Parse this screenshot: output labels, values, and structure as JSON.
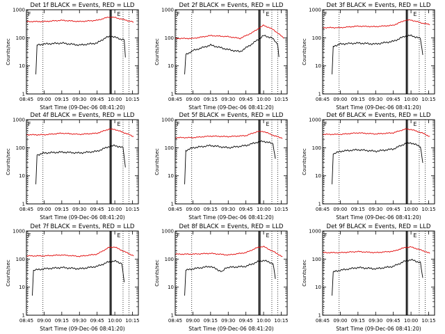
{
  "figure": {
    "x_axis_label": "Start Time (09-Dec-06 08:41:20)",
    "y_axis_label": "Counts/sec"
  },
  "chart_data": [
    {
      "type": "line",
      "title": "Det 1f BLACK = Events, RED = LLD",
      "xlabel": "Start Time (09-Dec-06 08:41:20)",
      "ylabel": "Counts/sec",
      "x_tick_labels": [
        "08:45",
        "09:00",
        "09:15",
        "09:30",
        "09:45",
        "10:00",
        "10:15"
      ],
      "y_tick_labels": [
        "1",
        "10",
        "100",
        "1000"
      ],
      "yscale": "log",
      "ylim": [
        1,
        1000
      ],
      "markers": {
        "f_label": "F",
        "e_label": "E"
      },
      "series": [
        {
          "name": "BLACK = Events",
          "color": "#000000",
          "points": [
            [
              "08:53",
              5
            ],
            [
              "08:54",
              55
            ],
            [
              "09:00",
              60
            ],
            [
              "09:15",
              65
            ],
            [
              "09:30",
              55
            ],
            [
              "09:45",
              65
            ],
            [
              "09:52",
              100
            ],
            [
              "09:57",
              115
            ],
            [
              "10:05",
              90
            ],
            [
              "10:08",
              85
            ],
            [
              "10:09",
              20
            ]
          ]
        },
        {
          "name": "RED = LLD",
          "color": "#e00000",
          "points": [
            [
              "08:45",
              380
            ],
            [
              "09:00",
              380
            ],
            [
              "09:15",
              420
            ],
            [
              "09:30",
              380
            ],
            [
              "09:45",
              420
            ],
            [
              "09:55",
              550
            ],
            [
              "10:00",
              530
            ],
            [
              "10:10",
              420
            ],
            [
              "10:16",
              360
            ]
          ]
        }
      ]
    },
    {
      "type": "line",
      "title": "Det 2f BLACK = Events, RED = LLD",
      "xlabel": "Start Time (09-Dec-06 08:41:20)",
      "ylabel": "Counts/sec",
      "x_tick_labels": [
        "08:45",
        "09:00",
        "09:15",
        "09:30",
        "09:45",
        "10:00",
        "10:15"
      ],
      "y_tick_labels": [
        "1",
        "10",
        "100",
        "1000"
      ],
      "yscale": "log",
      "ylim": [
        1,
        1000
      ],
      "markers": {
        "f_label": "F",
        "e_label": "E"
      },
      "series": [
        {
          "name": "BLACK = Events",
          "color": "#000000",
          "points": [
            [
              "08:53",
              5
            ],
            [
              "08:54",
              25
            ],
            [
              "09:00",
              35
            ],
            [
              "09:15",
              55
            ],
            [
              "09:30",
              38
            ],
            [
              "09:40",
              32
            ],
            [
              "09:50",
              60
            ],
            [
              "10:00",
              120
            ],
            [
              "10:07",
              100
            ],
            [
              "10:12",
              60
            ],
            [
              "10:13",
              20
            ]
          ]
        },
        {
          "name": "RED = LLD",
          "color": "#e00000",
          "points": [
            [
              "08:45",
              95
            ],
            [
              "09:00",
              95
            ],
            [
              "09:15",
              120
            ],
            [
              "09:30",
              110
            ],
            [
              "09:40",
              95
            ],
            [
              "09:50",
              150
            ],
            [
              "10:00",
              280
            ],
            [
              "10:08",
              200
            ],
            [
              "10:17",
              100
            ]
          ]
        }
      ]
    },
    {
      "type": "line",
      "title": "Det 3f BLACK = Events, RED = LLD",
      "xlabel": "Start Time (09-Dec-06 08:41:20)",
      "ylabel": "Counts/sec",
      "x_tick_labels": [
        "08:45",
        "09:00",
        "09:15",
        "09:30",
        "09:45",
        "10:00",
        "10:15"
      ],
      "y_tick_labels": [
        "1",
        "10",
        "100",
        "1000"
      ],
      "yscale": "log",
      "ylim": [
        1,
        1000
      ],
      "markers": {
        "f_label": "F",
        "e_label": "E"
      },
      "series": [
        {
          "name": "BLACK = Events",
          "color": "#000000",
          "points": [
            [
              "08:53",
              5
            ],
            [
              "08:54",
              50
            ],
            [
              "09:00",
              60
            ],
            [
              "09:15",
              65
            ],
            [
              "09:30",
              60
            ],
            [
              "09:45",
              75
            ],
            [
              "09:55",
              115
            ],
            [
              "10:00",
              120
            ],
            [
              "10:08",
              95
            ],
            [
              "10:10",
              25
            ]
          ]
        },
        {
          "name": "RED = LLD",
          "color": "#e00000",
          "points": [
            [
              "08:45",
              230
            ],
            [
              "09:00",
              230
            ],
            [
              "09:15",
              260
            ],
            [
              "09:30",
              250
            ],
            [
              "09:45",
              280
            ],
            [
              "09:55",
              420
            ],
            [
              "10:00",
              430
            ],
            [
              "10:10",
              330
            ],
            [
              "10:16",
              300
            ]
          ]
        }
      ]
    },
    {
      "type": "line",
      "title": "Det 4f BLACK = Events, RED = LLD",
      "xlabel": "Start Time (09-Dec-06 08:41:20)",
      "ylabel": "Counts/sec",
      "x_tick_labels": [
        "08:45",
        "09:00",
        "09:15",
        "09:30",
        "09:45",
        "10:00",
        "10:15"
      ],
      "y_tick_labels": [
        "1",
        "10",
        "100",
        "1000"
      ],
      "yscale": "log",
      "ylim": [
        1,
        1000
      ],
      "markers": {
        "f_label": "F",
        "e_label": "E"
      },
      "series": [
        {
          "name": "BLACK = Events",
          "color": "#000000",
          "points": [
            [
              "08:53",
              5
            ],
            [
              "08:54",
              55
            ],
            [
              "09:00",
              65
            ],
            [
              "09:15",
              70
            ],
            [
              "09:30",
              65
            ],
            [
              "09:45",
              75
            ],
            [
              "09:55",
              110
            ],
            [
              "10:00",
              120
            ],
            [
              "10:07",
              100
            ],
            [
              "10:09",
              20
            ]
          ]
        },
        {
          "name": "RED = LLD",
          "color": "#e00000",
          "points": [
            [
              "08:45",
              290
            ],
            [
              "09:00",
              290
            ],
            [
              "09:15",
              330
            ],
            [
              "09:30",
              300
            ],
            [
              "09:45",
              330
            ],
            [
              "09:55",
              460
            ],
            [
              "10:00",
              450
            ],
            [
              "10:10",
              320
            ],
            [
              "10:16",
              250
            ]
          ]
        }
      ]
    },
    {
      "type": "line",
      "title": "Det 5f BLACK = Events, RED = LLD",
      "xlabel": "Start Time (09-Dec-06 08:41:20)",
      "ylabel": "Counts/sec",
      "x_tick_labels": [
        "08:45",
        "09:00",
        "09:15",
        "09:30",
        "09:45",
        "10:00",
        "10:15"
      ],
      "y_tick_labels": [
        "1",
        "10",
        "100",
        "1000"
      ],
      "yscale": "log",
      "ylim": [
        1,
        1000
      ],
      "markers": {
        "f_label": "F",
        "e_label": "E"
      },
      "series": [
        {
          "name": "BLACK = Events",
          "color": "#000000",
          "points": [
            [
              "08:53",
              5
            ],
            [
              "08:54",
              80
            ],
            [
              "09:00",
              100
            ],
            [
              "09:15",
              120
            ],
            [
              "09:30",
              100
            ],
            [
              "09:45",
              120
            ],
            [
              "09:55",
              160
            ],
            [
              "10:00",
              170
            ],
            [
              "10:08",
              140
            ],
            [
              "10:10",
              40
            ]
          ]
        },
        {
          "name": "RED = LLD",
          "color": "#e00000",
          "points": [
            [
              "08:45",
              230
            ],
            [
              "09:00",
              230
            ],
            [
              "09:15",
              260
            ],
            [
              "09:30",
              250
            ],
            [
              "09:45",
              270
            ],
            [
              "09:55",
              380
            ],
            [
              "10:00",
              380
            ],
            [
              "10:10",
              260
            ],
            [
              "10:16",
              220
            ]
          ]
        }
      ]
    },
    {
      "type": "line",
      "title": "Det 6f BLACK = Events, RED = LLD",
      "xlabel": "Start Time (09-Dec-06 08:41:20)",
      "ylabel": "Counts/sec",
      "x_tick_labels": [
        "08:45",
        "09:00",
        "09:15",
        "09:30",
        "09:45",
        "10:00",
        "10:15"
      ],
      "y_tick_labels": [
        "1",
        "10",
        "100",
        "1000"
      ],
      "yscale": "log",
      "ylim": [
        1,
        1000
      ],
      "markers": {
        "f_label": "F",
        "e_label": "E"
      },
      "series": [
        {
          "name": "BLACK = Events",
          "color": "#000000",
          "points": [
            [
              "08:53",
              5
            ],
            [
              "08:54",
              60
            ],
            [
              "09:00",
              75
            ],
            [
              "09:15",
              85
            ],
            [
              "09:30",
              75
            ],
            [
              "09:45",
              90
            ],
            [
              "09:55",
              140
            ],
            [
              "10:00",
              150
            ],
            [
              "10:08",
              110
            ],
            [
              "10:10",
              30
            ]
          ]
        },
        {
          "name": "RED = LLD",
          "color": "#e00000",
          "points": [
            [
              "08:45",
              300
            ],
            [
              "09:00",
              300
            ],
            [
              "09:15",
              340
            ],
            [
              "09:30",
              310
            ],
            [
              "09:45",
              340
            ],
            [
              "09:55",
              460
            ],
            [
              "10:00",
              450
            ],
            [
              "10:10",
              330
            ],
            [
              "10:16",
              250
            ]
          ]
        }
      ]
    },
    {
      "type": "line",
      "title": "Det 7f BLACK = Events, RED = LLD",
      "xlabel": "Start Time (09-Dec-06 08:41:20)",
      "ylabel": "Counts/sec",
      "x_tick_labels": [
        "08:45",
        "09:00",
        "09:15",
        "09:30",
        "09:45",
        "10:00",
        "10:15"
      ],
      "y_tick_labels": [
        "1",
        "10",
        "100",
        "1000"
      ],
      "yscale": "log",
      "ylim": [
        1,
        1000
      ],
      "markers": {
        "f_label": "F",
        "e_label": "E"
      },
      "series": [
        {
          "name": "BLACK = Events",
          "color": "#000000",
          "points": [
            [
              "08:50",
              5
            ],
            [
              "08:51",
              40
            ],
            [
              "09:00",
              45
            ],
            [
              "09:15",
              50
            ],
            [
              "09:30",
              45
            ],
            [
              "09:45",
              55
            ],
            [
              "09:55",
              80
            ],
            [
              "10:00",
              85
            ],
            [
              "10:06",
              70
            ],
            [
              "10:08",
              15
            ]
          ]
        },
        {
          "name": "RED = LLD",
          "color": "#e00000",
          "points": [
            [
              "08:45",
              130
            ],
            [
              "09:00",
              130
            ],
            [
              "09:15",
              140
            ],
            [
              "09:30",
              125
            ],
            [
              "09:45",
              150
            ],
            [
              "09:55",
              260
            ],
            [
              "10:00",
              270
            ],
            [
              "10:10",
              170
            ],
            [
              "10:16",
              130
            ]
          ]
        }
      ]
    },
    {
      "type": "line",
      "title": "Det 8f BLACK = Events, RED = LLD",
      "xlabel": "Start Time (09-Dec-06 08:41:20)",
      "ylabel": "Counts/sec",
      "x_tick_labels": [
        "08:45",
        "09:00",
        "09:15",
        "09:30",
        "09:45",
        "10:00",
        "10:15"
      ],
      "y_tick_labels": [
        "1",
        "10",
        "100",
        "1000"
      ],
      "yscale": "log",
      "ylim": [
        1,
        1000
      ],
      "markers": {
        "f_label": "F",
        "e_label": "E"
      },
      "series": [
        {
          "name": "BLACK = Events",
          "color": "#000000",
          "points": [
            [
              "08:53",
              5
            ],
            [
              "08:54",
              40
            ],
            [
              "09:00",
              45
            ],
            [
              "09:15",
              55
            ],
            [
              "09:25",
              35
            ],
            [
              "09:28",
              50
            ],
            [
              "09:45",
              55
            ],
            [
              "09:55",
              80
            ],
            [
              "10:00",
              90
            ],
            [
              "10:08",
              70
            ],
            [
              "10:10",
              20
            ]
          ]
        },
        {
          "name": "RED = LLD",
          "color": "#e00000",
          "points": [
            [
              "08:45",
              150
            ],
            [
              "09:00",
              150
            ],
            [
              "09:15",
              160
            ],
            [
              "09:30",
              140
            ],
            [
              "09:45",
              170
            ],
            [
              "09:55",
              260
            ],
            [
              "10:00",
              280
            ],
            [
              "10:10",
              170
            ],
            [
              "10:16",
              120
            ]
          ]
        }
      ]
    },
    {
      "type": "line",
      "title": "Det 9f BLACK = Events, RED = LLD",
      "xlabel": "Start Time (09-Dec-06 08:41:20)",
      "ylabel": "Counts/sec",
      "x_tick_labels": [
        "08:45",
        "09:00",
        "09:15",
        "09:30",
        "09:45",
        "10:00",
        "10:15"
      ],
      "y_tick_labels": [
        "1",
        "10",
        "100",
        "1000"
      ],
      "yscale": "log",
      "ylim": [
        1,
        1000
      ],
      "markers": {
        "f_label": "F",
        "e_label": "E"
      },
      "series": [
        {
          "name": "BLACK = Events",
          "color": "#000000",
          "points": [
            [
              "08:53",
              5
            ],
            [
              "08:54",
              35
            ],
            [
              "09:00",
              40
            ],
            [
              "09:15",
              50
            ],
            [
              "09:30",
              45
            ],
            [
              "09:45",
              55
            ],
            [
              "09:55",
              85
            ],
            [
              "10:00",
              95
            ],
            [
              "10:08",
              75
            ],
            [
              "10:10",
              20
            ]
          ]
        },
        {
          "name": "RED = LLD",
          "color": "#e00000",
          "points": [
            [
              "08:45",
              170
            ],
            [
              "09:00",
              170
            ],
            [
              "09:15",
              185
            ],
            [
              "09:30",
              170
            ],
            [
              "09:45",
              190
            ],
            [
              "09:55",
              260
            ],
            [
              "10:00",
              270
            ],
            [
              "10:10",
              200
            ],
            [
              "10:16",
              160
            ]
          ]
        }
      ]
    }
  ]
}
